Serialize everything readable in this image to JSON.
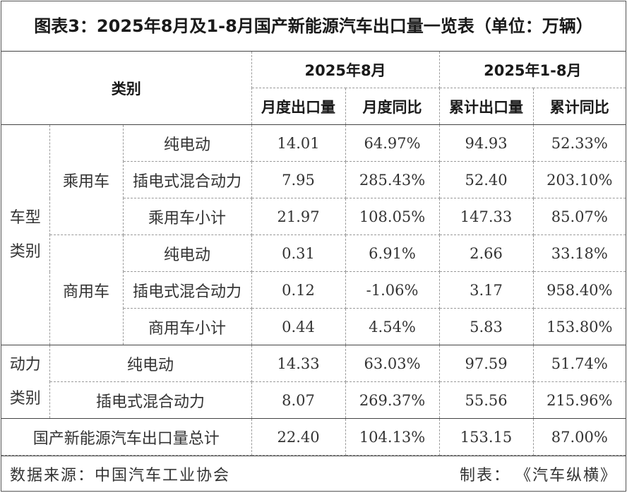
{
  "title": "图表3：2025年8月及1-8月国产新能源汽车出口量一览表（单位：万辆）",
  "header": {
    "category": "类别",
    "aug_group": "2025年8月",
    "ytd_group": "2025年1-8月",
    "monthly_export": "月度出口量",
    "monthly_yoy": "月度同比",
    "cumulative_export": "累计出口量",
    "cumulative_yoy": "累计同比"
  },
  "groups": {
    "vehicle_type_line1": "车型",
    "vehicle_type_line2": "类别",
    "passenger": "乘用车",
    "commercial": "商用车",
    "power_type_line1": "动力",
    "power_type_line2": "类别"
  },
  "rows": [
    {
      "label": "纯电动",
      "monthly": "14.01",
      "monthly_yoy": "64.97%",
      "cum": "94.93",
      "cum_yoy": "52.33%"
    },
    {
      "label": "插电式混合动力",
      "monthly": "7.95",
      "monthly_yoy": "285.43%",
      "cum": "52.40",
      "cum_yoy": "203.10%"
    },
    {
      "label": "乘用车小计",
      "monthly": "21.97",
      "monthly_yoy": "108.05%",
      "cum": "147.33",
      "cum_yoy": "85.07%"
    },
    {
      "label": "纯电动",
      "monthly": "0.31",
      "monthly_yoy": "6.91%",
      "cum": "2.66",
      "cum_yoy": "33.18%"
    },
    {
      "label": "插电式混合动力",
      "monthly": "0.12",
      "monthly_yoy": "-1.06%",
      "cum": "3.17",
      "cum_yoy": "958.40%"
    },
    {
      "label": "商用车小计",
      "monthly": "0.44",
      "monthly_yoy": "4.54%",
      "cum": "5.83",
      "cum_yoy": "153.80%"
    },
    {
      "label": "纯电动",
      "monthly": "14.33",
      "monthly_yoy": "63.03%",
      "cum": "97.59",
      "cum_yoy": "51.74%"
    },
    {
      "label": "插电式混合动力",
      "monthly": "8.07",
      "monthly_yoy": "269.37%",
      "cum": "55.56",
      "cum_yoy": "215.96%"
    },
    {
      "label": "国产新能源汽车出口量总计",
      "monthly": "22.40",
      "monthly_yoy": "104.13%",
      "cum": "153.15",
      "cum_yoy": "87.00%"
    }
  ],
  "footer": {
    "source_label": "数据来源：",
    "source": "中国汽车工业协会",
    "maker_label": "制表：",
    "maker": "《汽车纵横》"
  }
}
